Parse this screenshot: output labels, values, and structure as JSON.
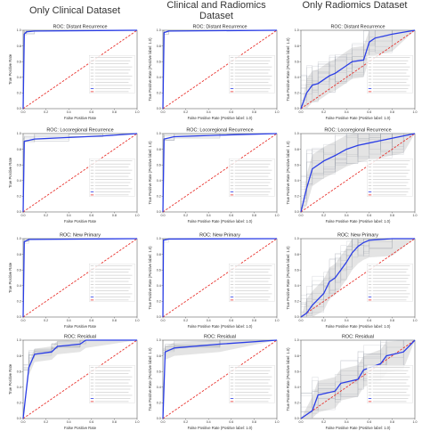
{
  "column_headers": [
    "Only Clinical Dataset",
    "Clinical and Radiomics Dataset",
    "Only Radiomics Dataset"
  ],
  "colors": {
    "mean": "#2b3ee6",
    "chance": "#e8322d",
    "folds": "#c9c9c9",
    "band": "#d9d9d9"
  },
  "axis_labels": {
    "xlabel_short": "False Positive Rate",
    "xlabel_long": "False Positive Rate (Positive label: 1.0)",
    "ylabel_short": "True Positive Rate",
    "ylabel_long": "True Positive Rate (Positive label: 1.0)"
  },
  "chart_data": [
    {
      "type": "line",
      "panel": "r0c0",
      "title": "ROC: Distant Recurrence",
      "xlim": [
        0,
        1
      ],
      "ylim": [
        0,
        1
      ],
      "ticks": [
        0.0,
        0.2,
        0.4,
        0.6,
        0.8,
        1.0
      ],
      "legend": "center-right",
      "series": [
        {
          "x": [
            0,
            0.01,
            0.03,
            0.1,
            1.0
          ],
          "y": [
            0,
            0.95,
            0.98,
            0.99,
            1.0
          ]
        },
        {
          "x": [
            0,
            1
          ],
          "y": [
            0,
            1
          ]
        }
      ]
    },
    {
      "type": "line",
      "panel": "r0c1",
      "title": "ROC: Distant Recurrence",
      "xlim": [
        0,
        1
      ],
      "ylim": [
        0,
        1
      ],
      "ticks": [
        0.0,
        0.2,
        0.4,
        0.6,
        0.8,
        1.0
      ],
      "legend": "center-right",
      "series": [
        {
          "x": [
            0,
            0.01,
            0.05,
            1.0
          ],
          "y": [
            0,
            0.97,
            0.99,
            1.0
          ]
        },
        {
          "x": [
            0,
            1
          ],
          "y": [
            0,
            1
          ]
        }
      ]
    },
    {
      "type": "line",
      "panel": "r0c2",
      "title": "ROC: Distant Recurrence",
      "xlim": [
        0,
        1
      ],
      "ylim": [
        0,
        1
      ],
      "ticks": [
        0.0,
        0.2,
        0.4,
        0.6,
        0.8,
        1.0
      ],
      "legend": "center-right",
      "series": [
        {
          "x": [
            0,
            0.05,
            0.1,
            0.15,
            0.25,
            0.3,
            0.4,
            0.45,
            0.55,
            0.6,
            0.65,
            0.8,
            1.0
          ],
          "y": [
            0,
            0.2,
            0.3,
            0.32,
            0.42,
            0.45,
            0.55,
            0.6,
            0.62,
            0.85,
            0.9,
            0.95,
            1.0
          ]
        },
        {
          "x": [
            0,
            1
          ],
          "y": [
            0,
            1
          ]
        }
      ]
    },
    {
      "type": "line",
      "panel": "r1c0",
      "title": "ROC: Locoregional Recurrence",
      "xlim": [
        0,
        1
      ],
      "ylim": [
        0,
        1
      ],
      "ticks": [
        0.0,
        0.2,
        0.4,
        0.6,
        0.8,
        1.0
      ],
      "legend": "center-right",
      "series": [
        {
          "x": [
            0,
            0.01,
            0.1,
            0.4,
            0.7,
            1.0
          ],
          "y": [
            0,
            0.9,
            0.93,
            0.95,
            0.97,
            1.0
          ]
        },
        {
          "x": [
            0,
            1
          ],
          "y": [
            0,
            1
          ]
        }
      ]
    },
    {
      "type": "line",
      "panel": "r1c1",
      "title": "ROC: Locoregional Recurrence",
      "xlim": [
        0,
        1
      ],
      "ylim": [
        0,
        1
      ],
      "ticks": [
        0.0,
        0.2,
        0.4,
        0.6,
        0.8,
        1.0
      ],
      "legend": "center-right",
      "series": [
        {
          "x": [
            0,
            0.01,
            0.1,
            0.5,
            1.0
          ],
          "y": [
            0,
            0.93,
            0.96,
            0.98,
            1.0
          ]
        },
        {
          "x": [
            0,
            1
          ],
          "y": [
            0,
            1
          ]
        }
      ]
    },
    {
      "type": "line",
      "panel": "r1c2",
      "title": "ROC: Locoregional Recurrence",
      "xlim": [
        0,
        1
      ],
      "ylim": [
        0,
        1
      ],
      "ticks": [
        0.0,
        0.2,
        0.4,
        0.6,
        0.8,
        1.0
      ],
      "legend": "center-right",
      "series": [
        {
          "x": [
            0,
            0.05,
            0.1,
            0.2,
            0.3,
            0.4,
            0.5,
            0.6,
            0.7,
            0.8,
            0.9,
            1.0
          ],
          "y": [
            0,
            0.3,
            0.55,
            0.65,
            0.72,
            0.8,
            0.85,
            0.88,
            0.91,
            0.94,
            0.97,
            1.0
          ]
        },
        {
          "x": [
            0,
            1
          ],
          "y": [
            0,
            1
          ]
        }
      ]
    },
    {
      "type": "line",
      "panel": "r2c0",
      "title": "ROC: New Primary",
      "xlim": [
        0,
        1
      ],
      "ylim": [
        0,
        1
      ],
      "ticks": [
        0.0,
        0.2,
        0.4,
        0.6,
        0.8,
        1.0
      ],
      "legend": "center-right",
      "series": [
        {
          "x": [
            0,
            0.01,
            0.05,
            1.0
          ],
          "y": [
            0,
            0.96,
            0.99,
            1.0
          ]
        },
        {
          "x": [
            0,
            1
          ],
          "y": [
            0,
            1
          ]
        }
      ]
    },
    {
      "type": "line",
      "panel": "r2c1",
      "title": "ROC: New Primary",
      "xlim": [
        0,
        1
      ],
      "ylim": [
        0,
        1
      ],
      "ticks": [
        0.0,
        0.2,
        0.4,
        0.6,
        0.8,
        1.0
      ],
      "legend": "center-right",
      "series": [
        {
          "x": [
            0,
            0.005,
            0.05,
            1.0
          ],
          "y": [
            0,
            0.98,
            0.995,
            1.0
          ]
        },
        {
          "x": [
            0,
            1
          ],
          "y": [
            0,
            1
          ]
        }
      ]
    },
    {
      "type": "line",
      "panel": "r2c2",
      "title": "ROC: New Primary",
      "xlim": [
        0,
        1
      ],
      "ylim": [
        0,
        1
      ],
      "ticks": [
        0.0,
        0.2,
        0.4,
        0.6,
        0.8,
        1.0
      ],
      "legend": "center-right",
      "series": [
        {
          "x": [
            0,
            0.05,
            0.1,
            0.2,
            0.25,
            0.3,
            0.35,
            0.4,
            0.45,
            0.5,
            0.55,
            0.6,
            0.8,
            1.0
          ],
          "y": [
            0,
            0.05,
            0.15,
            0.3,
            0.45,
            0.5,
            0.6,
            0.7,
            0.82,
            0.9,
            0.95,
            0.98,
            1.0,
            1.0
          ]
        },
        {
          "x": [
            0,
            1
          ],
          "y": [
            0,
            1
          ]
        }
      ]
    },
    {
      "type": "line",
      "panel": "r3c0",
      "title": "ROC: Residual",
      "xlim": [
        0,
        1
      ],
      "ylim": [
        0,
        1
      ],
      "ticks": [
        0.0,
        0.2,
        0.4,
        0.6,
        0.8,
        1.0
      ],
      "legend": "center-right",
      "series": [
        {
          "x": [
            0,
            0.05,
            0.1,
            0.25,
            0.3,
            0.5,
            0.55,
            1.0
          ],
          "y": [
            0,
            0.65,
            0.82,
            0.85,
            0.92,
            0.95,
            1.0,
            1.0
          ]
        },
        {
          "x": [
            0,
            1
          ],
          "y": [
            0,
            1
          ]
        }
      ]
    },
    {
      "type": "line",
      "panel": "r3c1",
      "title": "ROC: Residual",
      "xlim": [
        0,
        1
      ],
      "ylim": [
        0,
        1
      ],
      "ticks": [
        0.0,
        0.2,
        0.4,
        0.6,
        0.8,
        1.0
      ],
      "legend": "center-right",
      "series": [
        {
          "x": [
            0,
            0.02,
            0.1,
            0.5,
            1.0
          ],
          "y": [
            0,
            0.85,
            0.9,
            0.95,
            1.0
          ]
        },
        {
          "x": [
            0,
            1
          ],
          "y": [
            0,
            1
          ]
        }
      ]
    },
    {
      "type": "line",
      "panel": "r3c2",
      "title": "ROC: Residual",
      "xlim": [
        0,
        1
      ],
      "ylim": [
        0,
        1
      ],
      "ticks": [
        0.0,
        0.2,
        0.4,
        0.6,
        0.8,
        1.0
      ],
      "legend": "center-right",
      "series": [
        {
          "x": [
            0,
            0.1,
            0.15,
            0.3,
            0.35,
            0.5,
            0.55,
            0.7,
            0.75,
            0.9,
            1.0
          ],
          "y": [
            0,
            0.1,
            0.3,
            0.35,
            0.45,
            0.5,
            0.62,
            0.7,
            0.8,
            0.85,
            1.0
          ]
        },
        {
          "x": [
            0,
            1
          ],
          "y": [
            0,
            1
          ]
        }
      ]
    }
  ]
}
